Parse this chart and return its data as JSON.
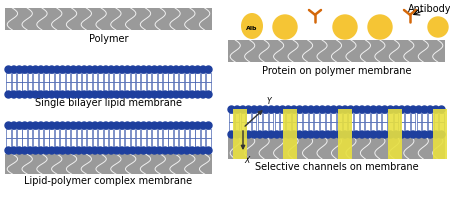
{
  "bg_color": "#ffffff",
  "gray_color": "#9a9a9a",
  "blue_color": "#1e3f9e",
  "white_color": "#ffffff",
  "yellow_protein": "#f5c535",
  "orange_antibody": "#d4680a",
  "yellow_channel": "#e8e040",
  "labels": {
    "polymer": "Polymer",
    "single_bilayer": "Single bilayer lipid membrane",
    "lipid_polymer": "Lipid-polymer complex membrane",
    "protein_polymer": "Protein on polymer membrane",
    "selective": "Selective channels on membrane",
    "antibody": "Antibody",
    "alb": "Alb",
    "x_label": "X",
    "y_label": "Y"
  },
  "font_size": 7
}
